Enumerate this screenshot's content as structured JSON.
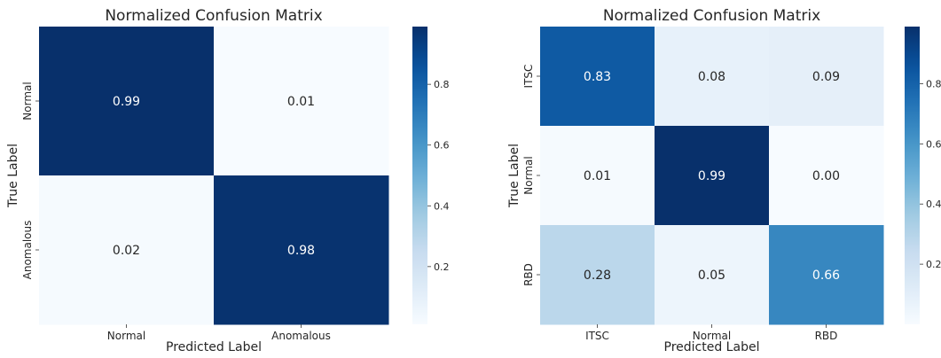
{
  "chart_data": [
    {
      "type": "heatmap",
      "title": "Normalized Confusion Matrix",
      "xlabel": "Predicted Label",
      "ylabel": "True Label",
      "x_categories": [
        "Normal",
        "Anomalous"
      ],
      "y_categories": [
        "Normal",
        "Anomalous"
      ],
      "values": [
        [
          0.99,
          0.01
        ],
        [
          0.02,
          0.98
        ]
      ],
      "value_labels": [
        [
          "0.99",
          "0.01"
        ],
        [
          "0.02",
          "0.98"
        ]
      ],
      "colorbar": {
        "range": [
          0.01,
          0.99
        ],
        "ticks": [
          0.2,
          0.4,
          0.6,
          0.8
        ],
        "tick_labels": [
          "0.2",
          "0.4",
          "0.6",
          "0.8"
        ],
        "colormap": "Blues"
      }
    },
    {
      "type": "heatmap",
      "title": "Normalized Confusion Matrix",
      "xlabel": "Predicted Label",
      "ylabel": "True Label",
      "x_categories": [
        "ITSC",
        "Normal",
        "RBD"
      ],
      "y_categories": [
        "ITSC",
        "Normal",
        "RBD"
      ],
      "values": [
        [
          0.83,
          0.08,
          0.09
        ],
        [
          0.01,
          0.99,
          0.0
        ],
        [
          0.28,
          0.05,
          0.66
        ]
      ],
      "value_labels": [
        [
          "0.83",
          "0.08",
          "0.09"
        ],
        [
          "0.01",
          "0.99",
          "0.00"
        ],
        [
          "0.28",
          "0.05",
          "0.66"
        ]
      ],
      "colorbar": {
        "range": [
          0.0,
          0.99
        ],
        "ticks": [
          0.2,
          0.4,
          0.6,
          0.8
        ],
        "tick_labels": [
          "0.2",
          "0.4",
          "0.6",
          "0.8"
        ],
        "colormap": "Blues"
      }
    }
  ]
}
